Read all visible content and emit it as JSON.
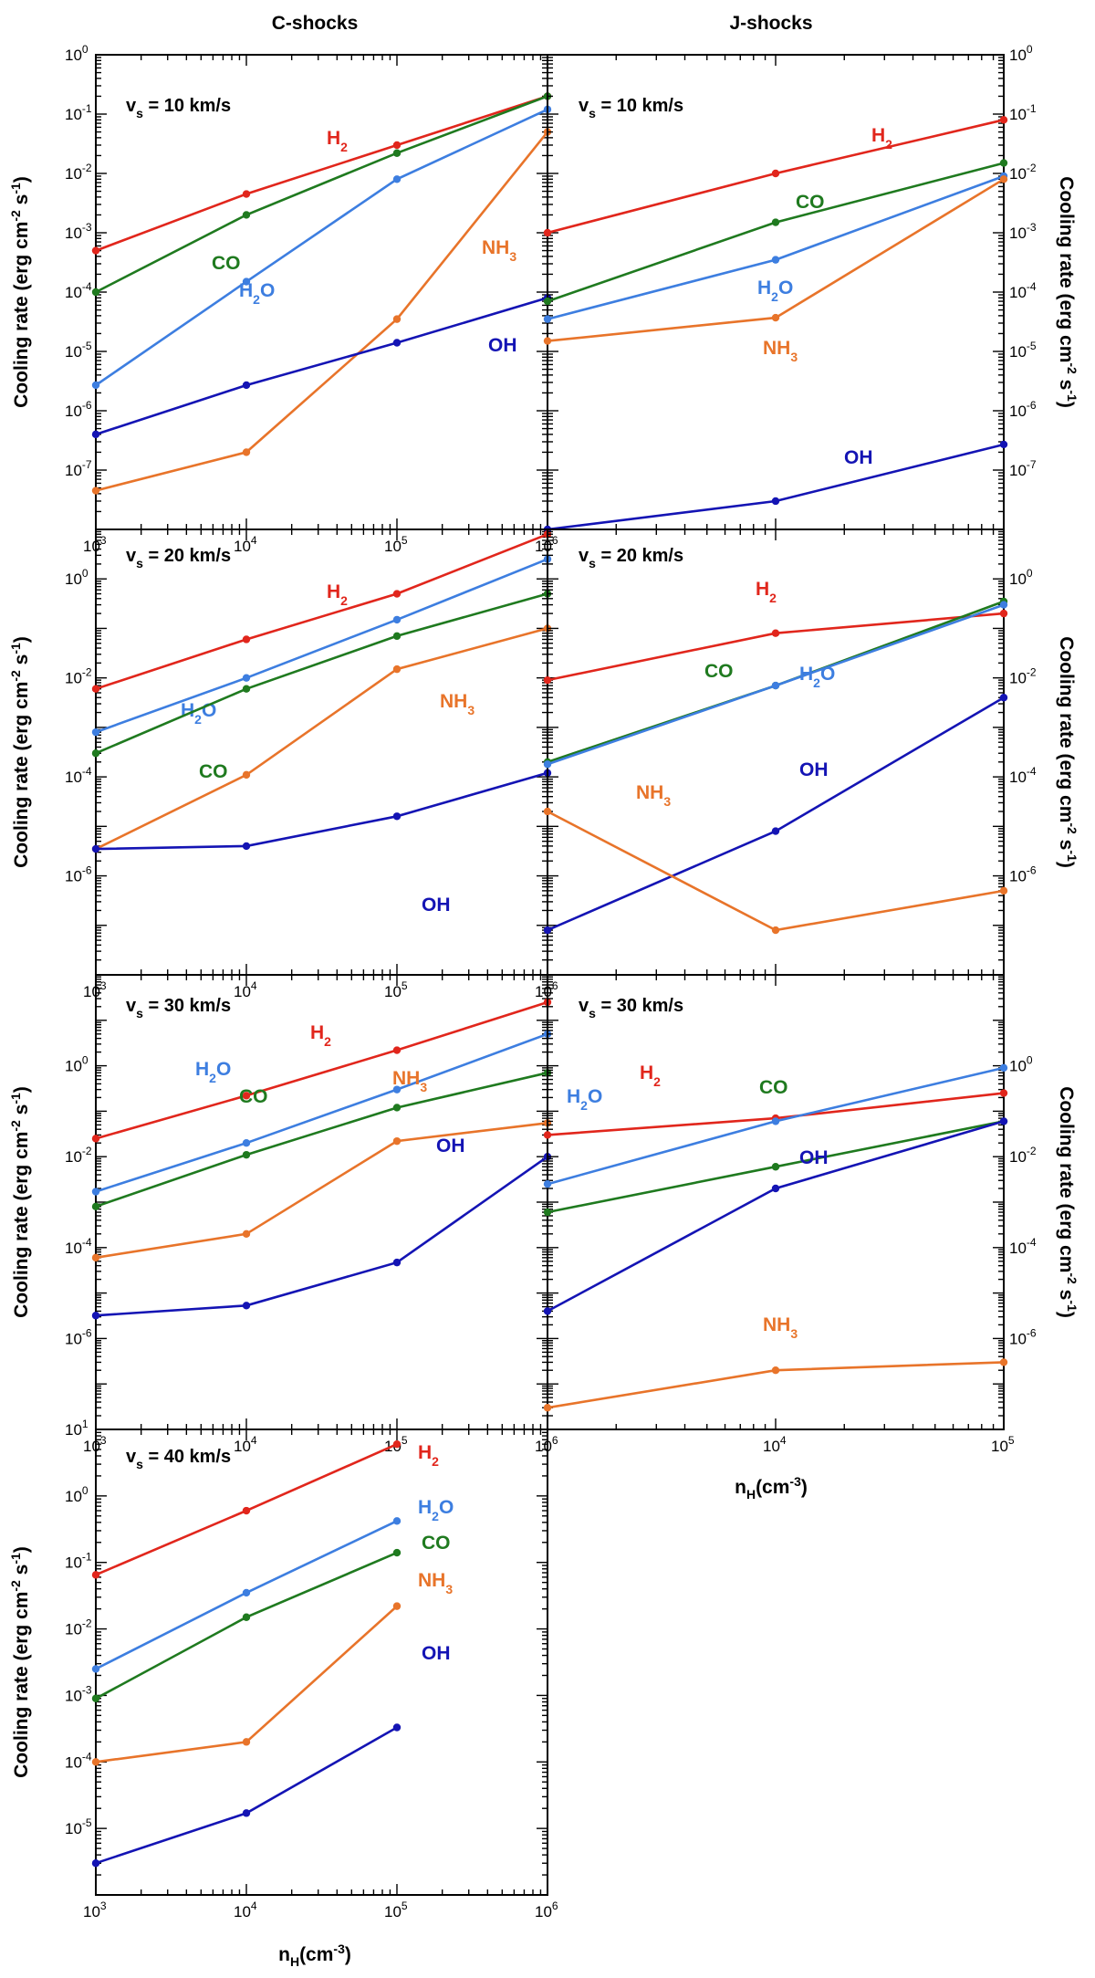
{
  "figure": {
    "column_titles": [
      "C-shocks",
      "J-shocks"
    ]
  },
  "chart_data": [
    {
      "type": "line",
      "id": "c10",
      "shock": "C-shocks",
      "title": "v_s = 10 km/s",
      "title_main": "v",
      "title_sub": "s",
      "title_rest": " = 10 km/s",
      "x_scale": "log",
      "xlim": [
        1000,
        1000000
      ],
      "y_scale": "log",
      "ylim": [
        1e-08,
        1
      ],
      "ylabel": "Cooling rate (erg cm^-2 s^-1)",
      "xlabel": "n_H(cm^-3)",
      "x_tick_exponents": [
        3,
        4,
        5,
        6
      ],
      "y_tick_exponents": [
        -7,
        -6,
        -5,
        -4,
        -3,
        -2,
        -1,
        0
      ],
      "series": [
        {
          "name": "H2",
          "x": [
            1000,
            10000,
            100000,
            1000000
          ],
          "values": [
            0.0005,
            0.0045,
            0.03,
            0.2
          ]
        },
        {
          "name": "CO",
          "x": [
            1000,
            10000,
            100000,
            1000000
          ],
          "values": [
            0.0001,
            0.002,
            0.022,
            0.2
          ]
        },
        {
          "name": "H2O",
          "x": [
            1000,
            10000,
            100000,
            1000000
          ],
          "values": [
            2.7e-06,
            0.00015,
            0.008,
            0.12
          ]
        },
        {
          "name": "NH3",
          "x": [
            1000,
            10000,
            100000,
            1000000
          ],
          "values": [
            4.5e-08,
            2e-07,
            3.5e-05,
            0.05
          ]
        },
        {
          "name": "OH",
          "x": [
            1000,
            10000,
            100000,
            1000000
          ],
          "values": [
            4e-07,
            2.7e-06,
            1.4e-05,
            8e-05
          ]
        }
      ]
    },
    {
      "type": "line",
      "id": "j10",
      "shock": "J-shocks",
      "title": "v_s = 10 km/s",
      "title_main": "v",
      "title_sub": "s",
      "title_rest": " = 10 km/s",
      "x_scale": "log",
      "xlim": [
        1000,
        100000
      ],
      "y_scale": "log",
      "ylim": [
        1e-08,
        1
      ],
      "ylabel": "Cooling rate (erg cm^-2 s^-1)",
      "xlabel": "n_H(cm^-3)",
      "x_tick_exponents": [],
      "y_tick_exponents": [
        -7,
        -6,
        -5,
        -4,
        -3,
        -2,
        -1,
        0
      ],
      "series": [
        {
          "name": "H2",
          "x": [
            1000,
            10000,
            100000
          ],
          "values": [
            0.001,
            0.01,
            0.08
          ]
        },
        {
          "name": "CO",
          "x": [
            1000,
            10000,
            100000
          ],
          "values": [
            7e-05,
            0.0015,
            0.015
          ]
        },
        {
          "name": "H2O",
          "x": [
            1000,
            10000,
            100000
          ],
          "values": [
            3.5e-05,
            0.00035,
            0.009
          ]
        },
        {
          "name": "NH3",
          "x": [
            1000,
            10000,
            100000
          ],
          "values": [
            1.5e-05,
            3.7e-05,
            0.008
          ]
        },
        {
          "name": "OH",
          "x": [
            1000,
            10000,
            100000
          ],
          "values": [
            1e-08,
            3e-08,
            2.7e-07
          ]
        }
      ]
    },
    {
      "type": "line",
      "id": "c20",
      "shock": "C-shocks",
      "title": "v_s = 20 km/s",
      "title_main": "v",
      "title_sub": "s",
      "title_rest": " = 20 km/s",
      "x_scale": "log",
      "xlim": [
        1000,
        1000000
      ],
      "y_scale": "log",
      "ylim": [
        1e-08,
        10
      ],
      "ylabel": "Cooling rate (erg cm^-2 s^-1)",
      "xlabel": "n_H(cm^-3)",
      "x_tick_exponents": [
        3,
        4,
        5,
        6
      ],
      "y_tick_exponents": [
        -6,
        -4,
        -2,
        0
      ],
      "series": [
        {
          "name": "H2",
          "x": [
            1000,
            10000,
            100000,
            1000000
          ],
          "values": [
            0.006,
            0.06,
            0.5,
            8
          ]
        },
        {
          "name": "H2O",
          "x": [
            1000,
            10000,
            100000,
            1000000
          ],
          "values": [
            0.0008,
            0.01,
            0.15,
            2.5
          ]
        },
        {
          "name": "CO",
          "x": [
            1000,
            10000,
            100000,
            1000000
          ],
          "values": [
            0.0003,
            0.006,
            0.07,
            0.5
          ]
        },
        {
          "name": "NH3",
          "x": [
            1000,
            10000,
            100000,
            1000000
          ],
          "values": [
            3.5e-06,
            0.00011,
            0.015,
            0.1
          ]
        },
        {
          "name": "OH",
          "x": [
            1000,
            10000,
            100000,
            1000000
          ],
          "values": [
            3.5e-06,
            4e-06,
            1.6e-05,
            0.00012
          ]
        }
      ]
    },
    {
      "type": "line",
      "id": "j20",
      "shock": "J-shocks",
      "title": "v_s = 20 km/s",
      "title_main": "v",
      "title_sub": "s",
      "title_rest": " = 20 km/s",
      "x_scale": "log",
      "xlim": [
        1000,
        100000
      ],
      "y_scale": "log",
      "ylim": [
        1e-08,
        10
      ],
      "ylabel": "Cooling rate (erg cm^-2 s^-1)",
      "xlabel": "n_H(cm^-3)",
      "x_tick_exponents": [],
      "y_tick_exponents": [
        -6,
        -4,
        -2,
        0
      ],
      "series": [
        {
          "name": "H2",
          "x": [
            1000,
            10000,
            100000
          ],
          "values": [
            0.009,
            0.08,
            0.2
          ]
        },
        {
          "name": "CO",
          "x": [
            1000,
            10000,
            100000
          ],
          "values": [
            0.0002,
            0.007,
            0.35
          ]
        },
        {
          "name": "H2O",
          "x": [
            1000,
            10000,
            100000
          ],
          "values": [
            0.00018,
            0.007,
            0.3
          ]
        },
        {
          "name": "OH",
          "x": [
            1000,
            10000,
            100000
          ],
          "values": [
            8e-08,
            8e-06,
            0.004
          ]
        },
        {
          "name": "NH3",
          "x": [
            1000,
            10000,
            100000
          ],
          "values": [
            2e-05,
            8e-08,
            5e-07
          ]
        }
      ]
    },
    {
      "type": "line",
      "id": "c30",
      "shock": "C-shocks",
      "title": "v_s = 30 km/s",
      "title_main": "v",
      "title_sub": "s",
      "title_rest": " = 30 km/s",
      "x_scale": "log",
      "xlim": [
        1000,
        1000000
      ],
      "y_scale": "log",
      "ylim": [
        1e-08,
        100
      ],
      "ylabel": "Cooling rate (erg cm^-2 s^-1)",
      "xlabel": "n_H(cm^-3)",
      "x_tick_exponents": [
        3,
        4,
        5,
        6
      ],
      "y_tick_exponents": [
        -6,
        -4,
        -2,
        0
      ],
      "series": [
        {
          "name": "H2",
          "x": [
            1000,
            10000,
            100000,
            1000000
          ],
          "values": [
            0.025,
            0.22,
            2.2,
            25
          ]
        },
        {
          "name": "H2O",
          "x": [
            1000,
            10000,
            100000,
            1000000
          ],
          "values": [
            0.0017,
            0.02,
            0.3,
            5
          ]
        },
        {
          "name": "CO",
          "x": [
            1000,
            10000,
            100000,
            1000000
          ],
          "values": [
            0.0008,
            0.011,
            0.12,
            0.7
          ]
        },
        {
          "name": "NH3",
          "x": [
            1000,
            10000,
            100000,
            1000000
          ],
          "values": [
            6e-05,
            0.0002,
            0.022,
            0.055
          ]
        },
        {
          "name": "OH",
          "x": [
            1000,
            10000,
            100000,
            1000000
          ],
          "values": [
            3.2e-06,
            5.3e-06,
            4.7e-05,
            0.01
          ]
        }
      ]
    },
    {
      "type": "line",
      "id": "j30",
      "shock": "J-shocks",
      "title": "v_s = 30 km/s",
      "title_main": "v",
      "title_sub": "s",
      "title_rest": " = 30 km/s",
      "x_scale": "log",
      "xlim": [
        1000,
        100000
      ],
      "y_scale": "log",
      "ylim": [
        1e-08,
        100
      ],
      "ylabel": "Cooling rate (erg cm^-2 s^-1)",
      "xlabel": "n_H(cm^-3)",
      "x_tick_exponents": [
        4,
        5
      ],
      "y_tick_exponents": [
        -6,
        -4,
        -2,
        0
      ],
      "series": [
        {
          "name": "H2",
          "x": [
            1000,
            10000,
            100000
          ],
          "values": [
            0.03,
            0.07,
            0.25
          ]
        },
        {
          "name": "H2O",
          "x": [
            1000,
            10000,
            100000
          ],
          "values": [
            0.0025,
            0.06,
            0.9
          ]
        },
        {
          "name": "CO",
          "x": [
            1000,
            10000,
            100000
          ],
          "values": [
            0.0006,
            0.006,
            0.06
          ]
        },
        {
          "name": "OH",
          "x": [
            1000,
            10000,
            100000
          ],
          "values": [
            4e-06,
            0.002,
            0.06
          ]
        },
        {
          "name": "NH3",
          "x": [
            1000,
            10000,
            100000
          ],
          "values": [
            3e-08,
            2e-07,
            3e-07
          ]
        }
      ]
    },
    {
      "type": "line",
      "id": "c40",
      "shock": "C-shocks",
      "title": "v_s = 40 km/s",
      "title_main": "v",
      "title_sub": "s",
      "title_rest": " = 40 km/s",
      "x_scale": "log",
      "xlim": [
        1000,
        1000000
      ],
      "y_scale": "log",
      "ylim": [
        1e-06,
        10
      ],
      "ylabel": "Cooling rate (erg cm^-2 s^-1)",
      "xlabel": "n_H(cm^-3)",
      "x_tick_exponents": [
        3,
        4,
        5,
        6
      ],
      "y_tick_exponents": [
        -5,
        -4,
        -3,
        -2,
        -1,
        0,
        1
      ],
      "series": [
        {
          "name": "H2",
          "x": [
            1000,
            10000,
            100000
          ],
          "values": [
            0.065,
            0.6,
            6
          ]
        },
        {
          "name": "H2O",
          "x": [
            1000,
            10000,
            100000
          ],
          "values": [
            0.0025,
            0.035,
            0.42
          ]
        },
        {
          "name": "CO",
          "x": [
            1000,
            10000,
            100000
          ],
          "values": [
            0.0009,
            0.015,
            0.14
          ]
        },
        {
          "name": "NH3",
          "x": [
            1000,
            10000,
            100000
          ],
          "values": [
            0.0001,
            0.0002,
            0.022
          ]
        },
        {
          "name": "OH",
          "x": [
            1000,
            10000,
            100000
          ],
          "values": [
            3e-06,
            1.7e-05,
            0.00033
          ]
        }
      ]
    }
  ],
  "series_colors": {
    "H2": "#e1261c",
    "CO": "#1f7a1f",
    "H2O": "#3d7ee0",
    "NH3": "#e8742a",
    "OH": "#1414b4"
  },
  "series_labels": {
    "H2": {
      "main": "H",
      "sub": "2",
      "rest": ""
    },
    "CO": {
      "main": "CO",
      "sub": "",
      "rest": ""
    },
    "H2O": {
      "main": "H",
      "sub": "2",
      "rest": "O"
    },
    "NH3": {
      "main": "NH",
      "sub": "3",
      "rest": ""
    },
    "OH": {
      "main": "OH",
      "sub": "",
      "rest": ""
    }
  },
  "axis_text": {
    "ylabel_main": "Cooling rate (erg cm",
    "ylabel_sup1": "-2",
    "ylabel_mid": " s",
    "ylabel_sup2": "-1",
    "ylabel_end": ")",
    "xlabel_main": "n",
    "xlabel_sub": "H",
    "xlabel_rest": "(cm",
    "xlabel_sup": "-3",
    "xlabel_end": ")",
    "tick_base": "10"
  }
}
